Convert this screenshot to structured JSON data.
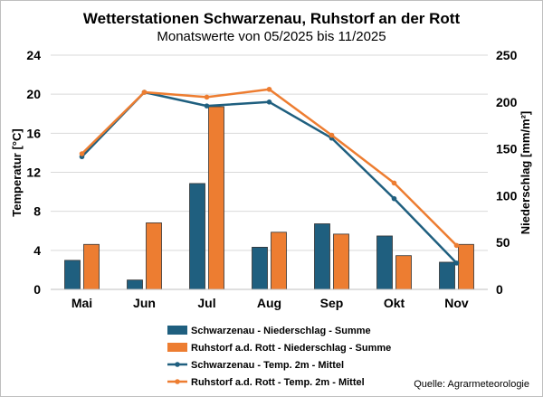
{
  "chart_data": {
    "type": "bar+line",
    "title": "Wetterstationen Schwarzenau, Ruhstorf an der Rott",
    "subtitle": "Monatswerte von 05/2025 bis 11/2025",
    "categories": [
      "Mai",
      "Jun",
      "Jul",
      "Aug",
      "Sep",
      "Okt",
      "Nov"
    ],
    "y_left": {
      "label": "Temperatur [°C]",
      "ylim": [
        0,
        24
      ],
      "ticks": [
        "0",
        "4",
        "8",
        "12",
        "16",
        "20",
        "24"
      ]
    },
    "y_right": {
      "label": "Niederschlag [mm/m²]",
      "ylim": [
        0,
        250
      ],
      "ticks": [
        "0",
        "50",
        "100",
        "150",
        "200",
        "250"
      ]
    },
    "bar_series": [
      {
        "name": "Schwarzenau - Niederschlag - Summe",
        "axis": "right",
        "color": "#1f5f7f",
        "values": [
          31,
          10,
          113,
          45,
          70,
          57,
          29
        ]
      },
      {
        "name": "Ruhstorf a.d. Rott - Niederschlag - Summe",
        "axis": "right",
        "color": "#ed7d31",
        "values": [
          48,
          71,
          195,
          61,
          59,
          36,
          48
        ]
      }
    ],
    "line_series": [
      {
        "name": "Schwarzenau - Temp. 2m - Mittel",
        "axis": "left",
        "color": "#1f5f7f",
        "values": [
          13.6,
          20.2,
          18.8,
          19.2,
          15.5,
          9.3,
          2.7
        ]
      },
      {
        "name": "Ruhstorf a.d. Rott - Temp. 2m - Mittel",
        "axis": "left",
        "color": "#ed7d31",
        "values": [
          13.9,
          20.2,
          19.7,
          20.5,
          15.8,
          10.9,
          4.5
        ]
      }
    ],
    "legend_position": "bottom",
    "source": "Quelle: Agrarmeteorologie"
  }
}
